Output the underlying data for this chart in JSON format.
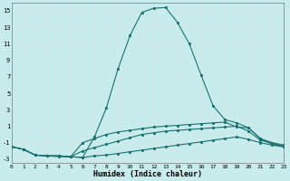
{
  "xlabel": "Humidex (Indice chaleur)",
  "background_color": "#c8ecec",
  "grid_color": "#d0e8e8",
  "line_color": "#1a7070",
  "xlim": [
    0,
    23
  ],
  "ylim": [
    -3.5,
    16
  ],
  "yticks": [
    -3,
    -1,
    1,
    3,
    5,
    7,
    9,
    11,
    13,
    15
  ],
  "xticks": [
    0,
    1,
    2,
    3,
    4,
    5,
    6,
    7,
    8,
    9,
    10,
    11,
    12,
    13,
    14,
    15,
    16,
    17,
    18,
    19,
    20,
    21,
    22,
    23
  ],
  "series": [
    {
      "x": [
        0,
        1,
        2,
        3,
        4,
        5,
        6,
        7,
        8,
        9,
        10,
        11,
        12,
        13,
        14,
        15,
        16,
        17,
        18,
        19,
        20,
        21,
        22,
        23
      ],
      "y": [
        -1.5,
        -1.8,
        -2.5,
        -2.6,
        -2.6,
        -2.7,
        -2.8,
        -0.3,
        3.2,
        8.0,
        12.0,
        14.8,
        15.3,
        15.4,
        13.6,
        11.0,
        7.2,
        3.5,
        1.8,
        1.4,
        0.8,
        -0.5,
        -1.2,
        -1.5
      ]
    },
    {
      "x": [
        0,
        1,
        2,
        3,
        4,
        5,
        6,
        7,
        8,
        9,
        10,
        11,
        12,
        13,
        14,
        15,
        16,
        17,
        18,
        19,
        20,
        21,
        22,
        23
      ],
      "y": [
        -1.5,
        -1.8,
        -2.5,
        -2.6,
        -2.6,
        -2.7,
        -1.0,
        -0.5,
        0.0,
        0.3,
        0.5,
        0.7,
        0.9,
        1.0,
        1.1,
        1.2,
        1.3,
        1.4,
        1.5,
        0.9,
        0.8,
        -0.5,
        -1.0,
        -1.3
      ]
    },
    {
      "x": [
        0,
        1,
        2,
        3,
        4,
        5,
        6,
        7,
        8,
        9,
        10,
        11,
        12,
        13,
        14,
        15,
        16,
        17,
        18,
        19,
        20,
        21,
        22,
        23
      ],
      "y": [
        -1.5,
        -1.8,
        -2.5,
        -2.6,
        -2.6,
        -2.7,
        -2.0,
        -1.6,
        -1.2,
        -0.8,
        -0.4,
        0.0,
        0.2,
        0.4,
        0.5,
        0.6,
        0.7,
        0.8,
        0.9,
        1.0,
        0.4,
        -0.7,
        -1.1,
        -1.4
      ]
    },
    {
      "x": [
        0,
        1,
        2,
        3,
        4,
        5,
        6,
        7,
        8,
        9,
        10,
        11,
        12,
        13,
        14,
        15,
        16,
        17,
        18,
        19,
        20,
        21,
        22,
        23
      ],
      "y": [
        -1.5,
        -1.8,
        -2.5,
        -2.6,
        -2.7,
        -2.7,
        -2.8,
        -2.6,
        -2.5,
        -2.3,
        -2.1,
        -1.9,
        -1.7,
        -1.5,
        -1.3,
        -1.1,
        -0.9,
        -0.7,
        -0.5,
        -0.3,
        -0.6,
        -1.0,
        -1.3,
        -1.5
      ]
    }
  ]
}
